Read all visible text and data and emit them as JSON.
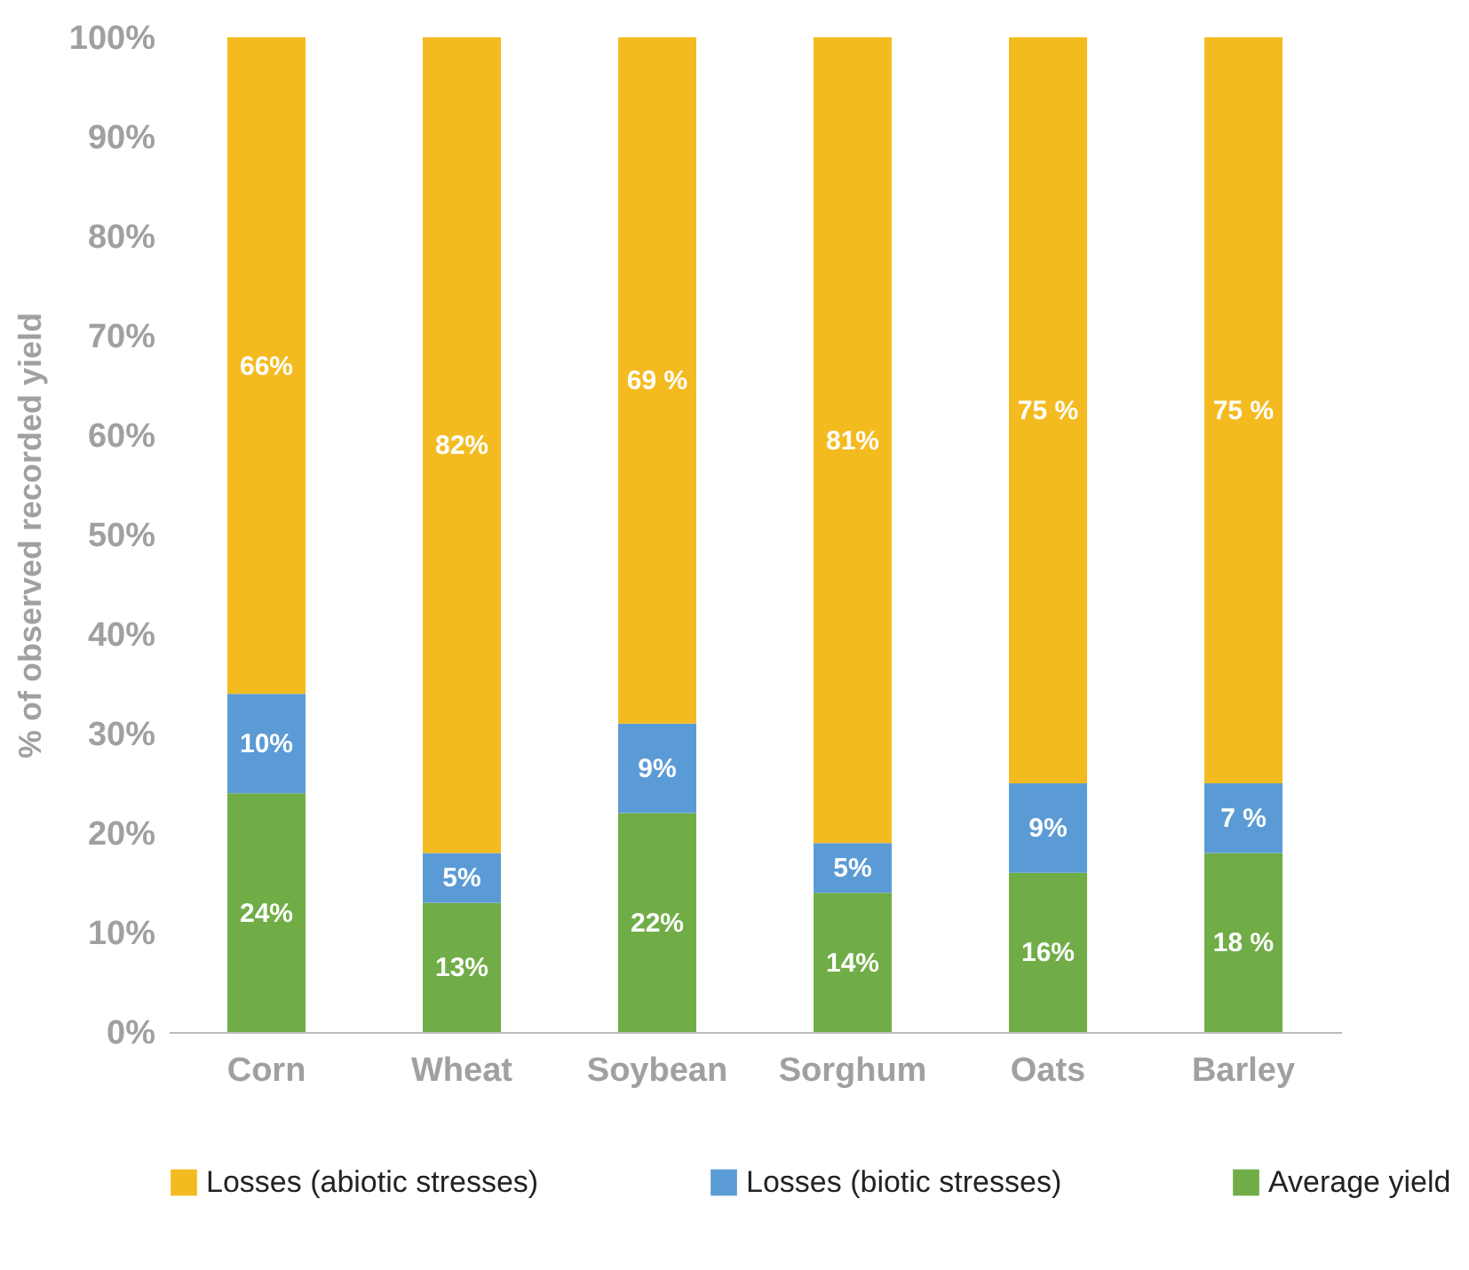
{
  "chart_data": {
    "type": "bar",
    "stacked": true,
    "ylabel": "% of observed recorded yield",
    "categories": [
      "Corn",
      "Wheat",
      "Soybean",
      "Sorghum",
      "Oats",
      "Barley"
    ],
    "series": [
      {
        "name": "Average yield",
        "color": "#70ad47",
        "values": [
          24,
          13,
          22,
          14,
          16,
          18
        ],
        "value_labels": [
          "24%",
          "13%",
          "22%",
          "14%",
          "16%",
          "18 %"
        ]
      },
      {
        "name": "Losses (biotic stresses)",
        "color": "#5b9bd5",
        "values": [
          10,
          5,
          9,
          5,
          9,
          7
        ],
        "value_labels": [
          "10%",
          "5%",
          "9%",
          "5%",
          "9%",
          "7 %"
        ]
      },
      {
        "name": "Losses (abiotic stresses)",
        "color": "#f4bb21",
        "values": [
          66,
          82,
          69,
          81,
          75,
          75
        ],
        "value_labels": [
          "66%",
          "82%",
          "69 %",
          "81%",
          "75 %",
          "75 %"
        ]
      }
    ],
    "ylim": [
      0,
      100
    ],
    "yticks": [
      {
        "value": 0,
        "label": "0%"
      },
      {
        "value": 10,
        "label": "10%"
      },
      {
        "value": 20,
        "label": "20%"
      },
      {
        "value": 30,
        "label": "30%"
      },
      {
        "value": 40,
        "label": "40%"
      },
      {
        "value": 50,
        "label": "50%"
      },
      {
        "value": 60,
        "label": "60%"
      },
      {
        "value": 70,
        "label": "70%"
      },
      {
        "value": 80,
        "label": "80%"
      },
      {
        "value": 90,
        "label": "90%"
      },
      {
        "value": 100,
        "label": "100%"
      }
    ],
    "grid": false,
    "legend": "bottom"
  }
}
